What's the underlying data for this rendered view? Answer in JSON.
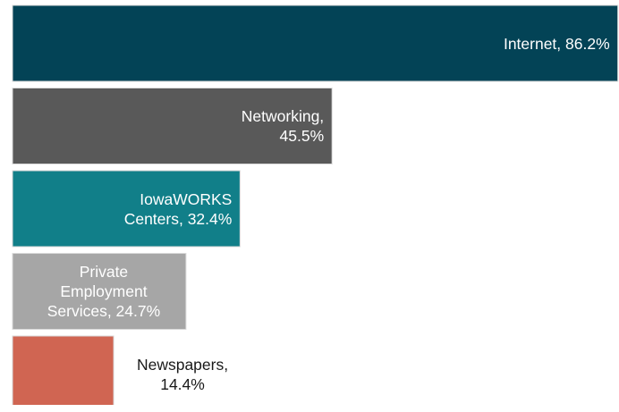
{
  "chart_data": {
    "type": "bar",
    "orientation": "horizontal",
    "xlim": [
      0,
      100
    ],
    "categories": [
      "Internet",
      "Networking",
      "IowaWORKS Centers",
      "Private Employment Services",
      "Newspapers"
    ],
    "values": [
      86.2,
      45.5,
      32.4,
      24.7,
      14.4
    ],
    "colors": [
      "#034356",
      "#595959",
      "#117f89",
      "#a6a6a6",
      "#d06552"
    ],
    "data_labels": [
      [
        "Internet, 86.2%"
      ],
      [
        "Networking,",
        "45.5%"
      ],
      [
        "IowaWORKS",
        "Centers, 32.4%"
      ],
      [
        "Private",
        "Employment",
        "Services, 24.7%"
      ],
      [
        "Newspapers,",
        "14.4%"
      ]
    ],
    "grid": false,
    "legend": "none"
  }
}
